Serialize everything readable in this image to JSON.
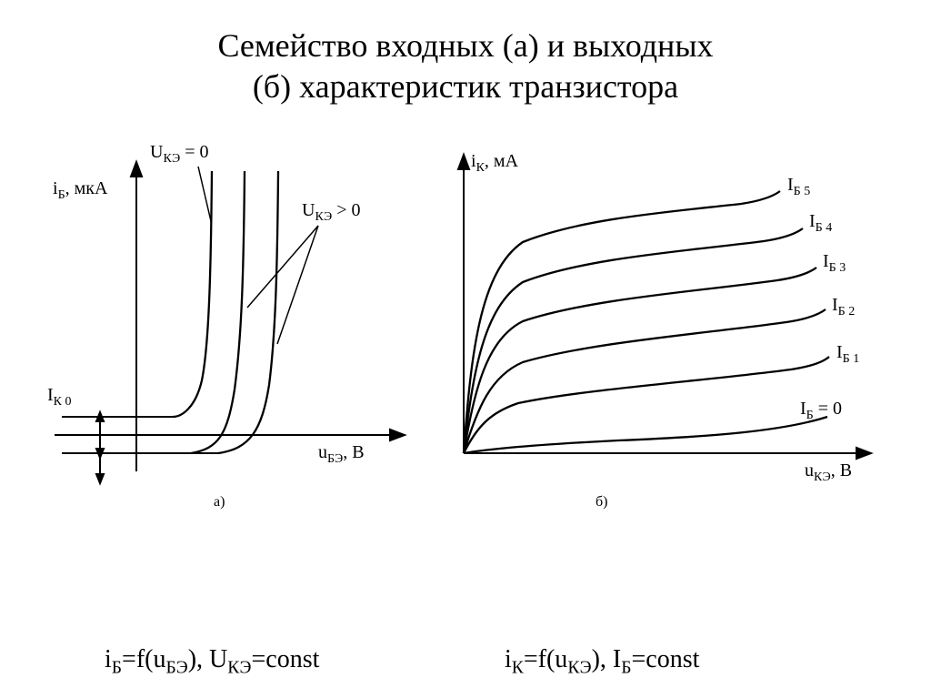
{
  "title_line1": "Семейство входных (а) и выходных",
  "title_line2": "(б) характеристик транзистора",
  "chartA": {
    "y_label_html": "i<span class='sub'>Б</span>, мкА",
    "x_label_html": "u<span class='sub'>БЭ</span>, В",
    "annotation1_html": "U<span class='sub'>КЭ</span> = 0",
    "annotation2_html": "U<span class='sub'>КЭ</span> > 0",
    "ik0_html": "I<span class='sub'>К 0</span>",
    "caption": "а)",
    "stroke": "#000000",
    "stroke_width": 2,
    "axis_width": 2
  },
  "chartB": {
    "y_label_html": "i<span class='sub'>К</span>, мА",
    "x_label_html": "u<span class='sub'>КЭ</span>, В",
    "curve_labels_html": [
      "I<span class='sub'>Б</span> = 0",
      "I<span class='sub'>Б 1</span>",
      "I<span class='sub'>Б 2</span>",
      "I<span class='sub'>Б 3</span>",
      "I<span class='sub'>Б 4</span>",
      "I<span class='sub'>Б 5</span>"
    ],
    "caption": "б)",
    "stroke": "#000000",
    "stroke_width": 2,
    "axis_width": 2
  },
  "formulaA_html": "i<span class='sub'>Б</span>=f(u<span class='sub'>БЭ</span>), U<span class='sub'>КЭ</span>=const",
  "formulaB_html": "i<span class='sub'>К</span>=f(u<span class='sub'>КЭ</span>), I<span class='sub'>Б</span>=const"
}
